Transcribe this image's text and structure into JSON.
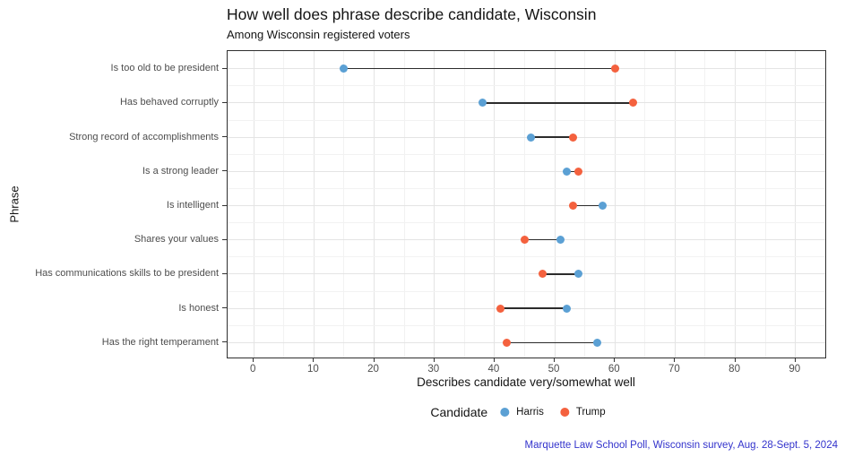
{
  "title": "How well does phrase describe candidate, Wisconsin",
  "subtitle": "Among Wisconsin registered voters",
  "caption": "Marquette Law School Poll, Wisconsin survey, Aug. 28-Sept. 5, 2024",
  "chart_data": {
    "type": "dumbbell",
    "orientation": "horizontal",
    "title": "How well does phrase describe candidate, Wisconsin",
    "subtitle": "Among Wisconsin registered voters",
    "xlabel": "Describes candidate very/somewhat well",
    "ylabel": "Phrase",
    "categories": [
      "Is too old to be president",
      "Has behaved corruptly",
      "Strong record of accomplishments",
      "Is a strong leader",
      "Is intelligent",
      "Shares your values",
      "Has communications skills to be president",
      "Is honest",
      "Has the right temperament"
    ],
    "series": [
      {
        "name": "Harris",
        "color": "#5BA0D4",
        "values": [
          15,
          38,
          46,
          52,
          58,
          51,
          54,
          52,
          57
        ]
      },
      {
        "name": "Trump",
        "color": "#F4613E",
        "values": [
          60,
          63,
          53,
          54,
          53,
          45,
          48,
          41,
          42
        ]
      }
    ],
    "x_ticks": [
      0,
      10,
      20,
      30,
      40,
      50,
      60,
      70,
      80,
      90
    ],
    "xlim": [
      -4.35,
      94.95
    ],
    "grid": {
      "major": true,
      "minor": true
    },
    "legend": {
      "title": "Candidate",
      "position": "bottom"
    },
    "connector_color": "#2B2B2B"
  },
  "colors": {
    "harris": "#5BA0D4",
    "trump": "#F4613E",
    "caption_blue": "#3333CC",
    "grid_major": "#E4E4E4",
    "grid_minor": "#F2F2F2",
    "panel_border": "#2F2F2F",
    "tick_label": "#4D4D4D"
  }
}
